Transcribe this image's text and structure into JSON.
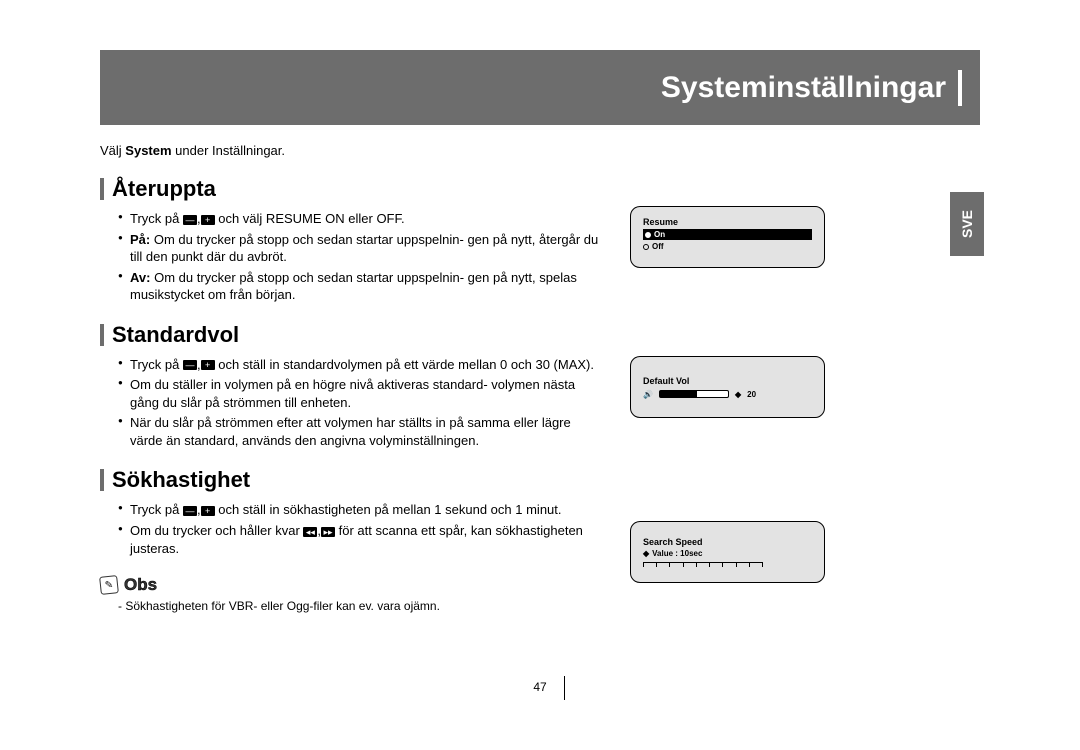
{
  "banner": {
    "title": "Systeminställningar"
  },
  "lang_tab": "SVE",
  "intro": {
    "pre": "Välj ",
    "bold": "System",
    "post": " under Inställningar."
  },
  "sections": {
    "resume": {
      "heading": "Återuppta",
      "b1a": "Tryck på ",
      "b1b": " och välj RESUME ON eller OFF.",
      "b2_label": "På:",
      "b2_text": " Om du trycker på stopp och sedan startar uppspelnin- gen på nytt, återgår du till den punkt där du avbröt.",
      "b3_label": "Av:",
      "b3_text": " Om du trycker på stopp och sedan startar uppspelnin- gen på nytt, spelas musikstycket om från början."
    },
    "vol": {
      "heading": "Standardvol",
      "b1a": "Tryck på ",
      "b1b": " och ställ in standardvolymen på ett värde mellan 0 och 30 (MAX).",
      "b2": "Om du ställer in volymen på en högre nivå aktiveras standard- volymen nästa gång du slår på strömmen till enheten.",
      "b3": "När du slår på strömmen efter att volymen har ställts in på samma eller lägre värde än standard, används den angivna volyminställningen."
    },
    "speed": {
      "heading": "Sökhastighet",
      "b1a": "Tryck på ",
      "b1b": " och ställ in sökhastigheten på mellan 1 sekund och 1 minut.",
      "b2a": "Om du trycker och håller kvar ",
      "b2b": " för att scanna ett spår, kan sökhastigheten justeras."
    }
  },
  "note": {
    "title": "Obs",
    "text": "- Sökhastigheten för VBR- eller Ogg-filer kan ev. vara ojämn."
  },
  "lcd": {
    "resume": {
      "title": "Resume",
      "on": "On",
      "off": "Off"
    },
    "vol": {
      "title": "Default Vol",
      "value": "20"
    },
    "speed": {
      "title": "Search Speed",
      "value": "Value : 10sec"
    }
  },
  "page_number": "47",
  "colors": {
    "banner": "#6d6d6d",
    "lcd_bg": "#e3e3e3"
  }
}
